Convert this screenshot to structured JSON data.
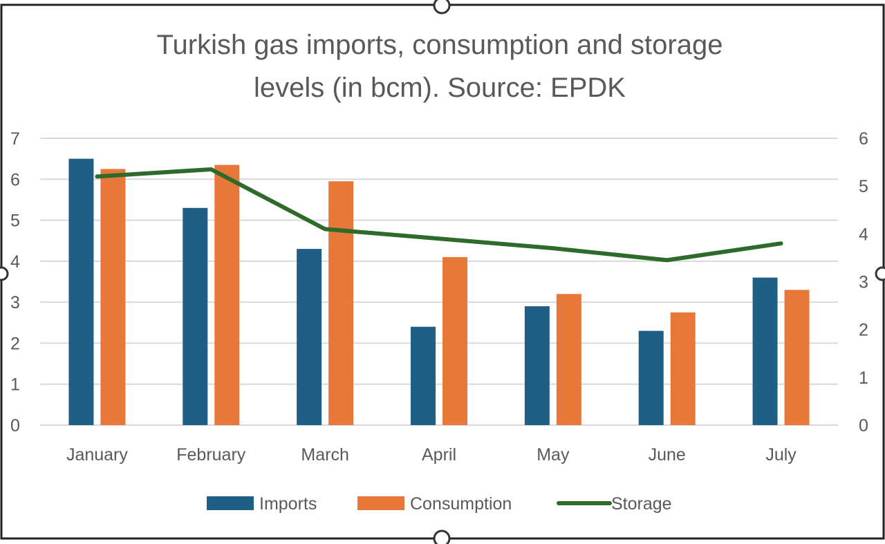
{
  "chart_data": {
    "type": "bar",
    "title_lines": [
      "Turkish gas imports, consumption and storage",
      "levels (in bcm). Source: EPDK"
    ],
    "categories": [
      "January",
      "February",
      "March",
      "April",
      "May",
      "June",
      "July"
    ],
    "series": [
      {
        "name": "Imports",
        "type": "bar",
        "axis": "left",
        "color": "#1f5f86",
        "values": [
          6.5,
          5.3,
          4.3,
          2.4,
          2.9,
          2.3,
          3.6
        ]
      },
      {
        "name": "Consumption",
        "type": "bar",
        "axis": "left",
        "color": "#e8773a",
        "values": [
          6.25,
          6.35,
          5.95,
          4.1,
          3.2,
          2.75,
          3.3
        ]
      },
      {
        "name": "Storage",
        "type": "line",
        "axis": "right",
        "color": "#2e6b2b",
        "values": [
          5.2,
          5.35,
          4.1,
          3.9,
          3.7,
          3.45,
          3.8
        ]
      }
    ],
    "left_axis": {
      "ylim": [
        0,
        7
      ],
      "ticks": [
        "0",
        "1",
        "2",
        "3",
        "4",
        "5",
        "6",
        "7"
      ]
    },
    "right_axis": {
      "ylim": [
        0,
        6
      ],
      "ticks": [
        "0",
        "1",
        "2",
        "3",
        "4",
        "5",
        "6"
      ]
    },
    "grid": true,
    "legend_position": "bottom"
  }
}
